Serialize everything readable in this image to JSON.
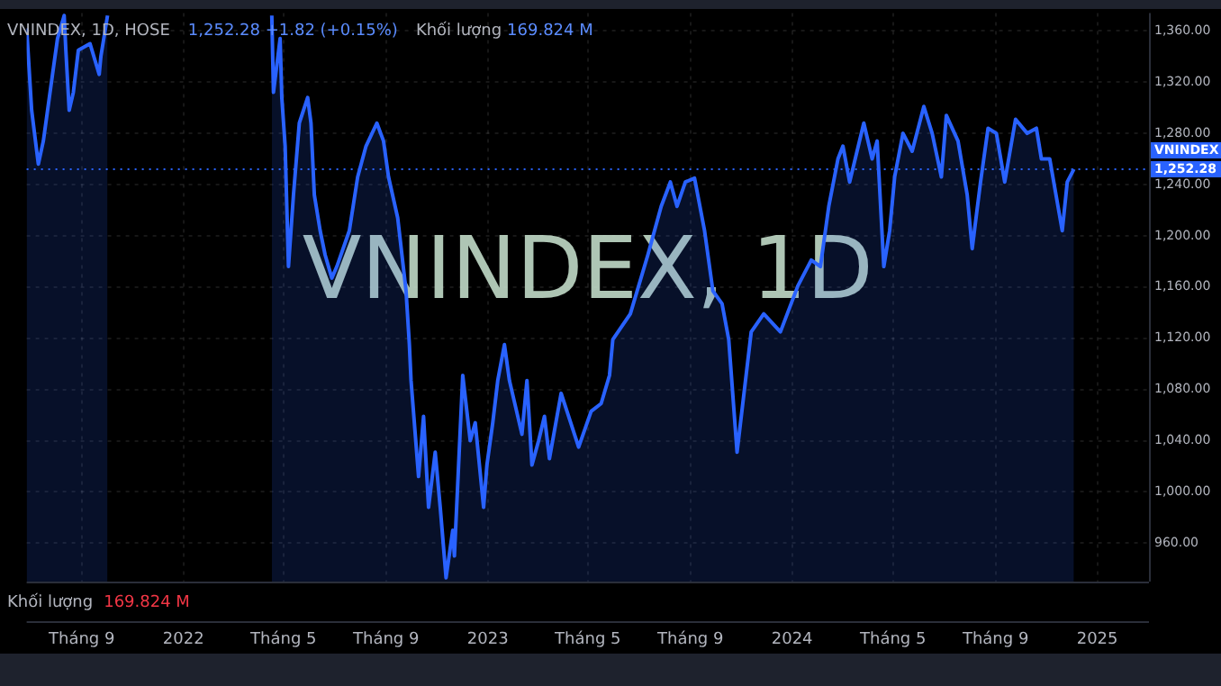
{
  "chart_data": {
    "type": "area",
    "title": "VNINDEX, 1D",
    "subtitle": "VNINDEX, 1D, HOSE",
    "annotations": [
      "1,252.28 +1.82 (+0.15%)",
      "Khối lượng",
      "169.824 M",
      "Khối lượng",
      "169.824 M",
      "1,252.28"
    ],
    "series": [
      {
        "color": "#2962ff",
        "x": [
          "2021-06-27",
          "2021-07-03",
          "2021-07-11",
          "2021-07-17",
          "2021-07-28",
          "2021-08-03",
          "2021-08-11",
          "2021-08-13",
          "2021-08-17",
          "2021-08-22",
          "2021-08-28",
          "2021-09-11",
          "2021-09-22",
          "2021-09-24",
          "2021-10-02",
          "2022-01-15",
          "2022-04-17",
          "2022-04-19",
          "2022-04-27",
          "2022-04-29",
          "2022-05-03",
          "2022-05-07",
          "2022-05-13",
          "2022-05-20",
          "2022-05-30",
          "2022-06-03",
          "2022-06-07",
          "2022-06-14",
          "2022-06-20",
          "2022-06-28",
          "2022-07-04",
          "2022-07-19",
          "2022-07-29",
          "2022-08-08",
          "2022-08-21",
          "2022-08-29",
          "2022-09-04",
          "2022-09-15",
          "2022-09-25",
          "2022-09-29",
          "2022-10-01",
          "2022-10-10",
          "2022-10-16",
          "2022-10-22",
          "2022-10-30",
          "2022-11-05",
          "2022-11-12",
          "2022-11-20",
          "2022-11-22",
          "2022-12-02",
          "2022-12-11",
          "2022-12-17",
          "2022-12-27",
          "2022-12-31",
          "2023-01-07",
          "2023-01-13",
          "2023-01-21",
          "2023-01-27",
          "2023-02-11",
          "2023-02-17",
          "2023-02-23",
          "2023-03-03",
          "2023-03-10",
          "2023-03-16",
          "2023-03-30",
          "2023-04-20",
          "2023-05-05",
          "2023-05-17",
          "2023-05-27",
          "2023-05-31",
          "2023-06-21",
          "2023-07-12",
          "2023-07-28",
          "2023-08-08",
          "2023-08-16",
          "2023-08-26",
          "2023-09-06",
          "2023-09-18",
          "2023-09-28",
          "2023-10-09",
          "2023-10-17",
          "2023-10-27",
          "2023-11-13",
          "2023-11-28",
          "2023-12-18",
          "2024-01-08",
          "2024-01-24",
          "2024-02-04",
          "2024-02-14",
          "2024-02-25",
          "2024-03-02",
          "2024-03-10",
          "2024-03-27",
          "2024-04-06",
          "2024-04-12",
          "2024-04-20",
          "2024-04-27",
          "2024-05-03",
          "2024-05-13",
          "2024-05-24",
          "2024-06-07",
          "2024-06-17",
          "2024-06-28",
          "2024-07-04",
          "2024-07-18",
          "2024-07-29",
          "2024-08-04",
          "2024-08-14",
          "2024-08-23",
          "2024-09-02",
          "2024-09-12",
          "2024-09-25",
          "2024-10-09",
          "2024-10-20",
          "2024-10-26",
          "2024-11-05",
          "2024-11-20",
          "2024-11-26",
          "2024-12-04"
        ],
        "values": [
          1362,
          1298,
          1256,
          1274,
          1326,
          1354,
          1372,
          1345,
          1298,
          1312,
          1345,
          1350,
          1326,
          1340,
          1372,
          null,
          1372,
          1312,
          1354,
          1308,
          1270,
          1176,
          1232,
          1288,
          1308,
          1288,
          1232,
          1204,
          1185,
          1167,
          1176,
          1204,
          1246,
          1270,
          1288,
          1274,
          1246,
          1214,
          1157,
          1115,
          1087,
          1012,
          1059,
          988,
          1031,
          988,
          933,
          970,
          950,
          1091,
          1040,
          1054,
          988,
          1021,
          1054,
          1087,
          1115,
          1087,
          1045,
          1087,
          1021,
          1040,
          1059,
          1026,
          1077,
          1035,
          1063,
          1069,
          1091,
          1119,
          1139,
          1185,
          1223,
          1242,
          1223,
          1242,
          1245,
          1204,
          1157,
          1147,
          1119,
          1031,
          1125,
          1139,
          1125,
          1161,
          1181,
          1176,
          1223,
          1260,
          1270,
          1242,
          1288,
          1260,
          1274,
          1176,
          1204,
          1246,
          1280,
          1266,
          1301,
          1280,
          1246,
          1294,
          1274,
          1232,
          1190,
          1242,
          1284,
          1280,
          1242,
          1291,
          1280,
          1284,
          1260,
          1260,
          1204,
          1242,
          1252
        ]
      }
    ],
    "xlim": [
      "2021-06-27",
      "2025-03-04"
    ],
    "xticks": [
      {
        "value": "2021-09",
        "label": "Tháng 9"
      },
      "2022",
      {
        "value": "2022-05",
        "label": "Tháng 5"
      },
      {
        "value": "2022-09",
        "label": "Tháng 9"
      },
      "2023",
      {
        "value": "2023-05",
        "label": "Tháng 5"
      },
      {
        "value": "2023-09",
        "label": "Tháng 9"
      },
      "2024",
      {
        "value": "2024-05",
        "label": "Tháng 5"
      },
      {
        "value": "2024-09",
        "label": "Tháng 9"
      },
      "2025"
    ],
    "ylim": [
      930,
      1374
    ],
    "yticks": [
      {
        "value": 960,
        "label": "960.00"
      },
      {
        "value": 1000,
        "label": "1,000.00"
      },
      {
        "value": 1040,
        "label": "1,040.00"
      },
      {
        "value": 1080,
        "label": "1,080.00"
      },
      {
        "value": 1120,
        "label": "1,120.00"
      },
      {
        "value": 1160,
        "label": "1,160.00"
      },
      {
        "value": 1200,
        "label": "1,200.00"
      },
      {
        "value": 1240,
        "label": "1,240.00"
      },
      {
        "value": 1280,
        "label": "1,280.00"
      },
      {
        "value": 1320,
        "label": "1,320.00"
      },
      {
        "value": 1360,
        "label": "1,360.00"
      }
    ],
    "ref_lines": [
      {
        "axis": "y",
        "value": 1252,
        "label": "VNINDEX",
        "color": "#2962ff",
        "line_style": "dotted"
      }
    ],
    "grid": true,
    "legend": false,
    "marker": "none",
    "line_style": "solid"
  }
}
